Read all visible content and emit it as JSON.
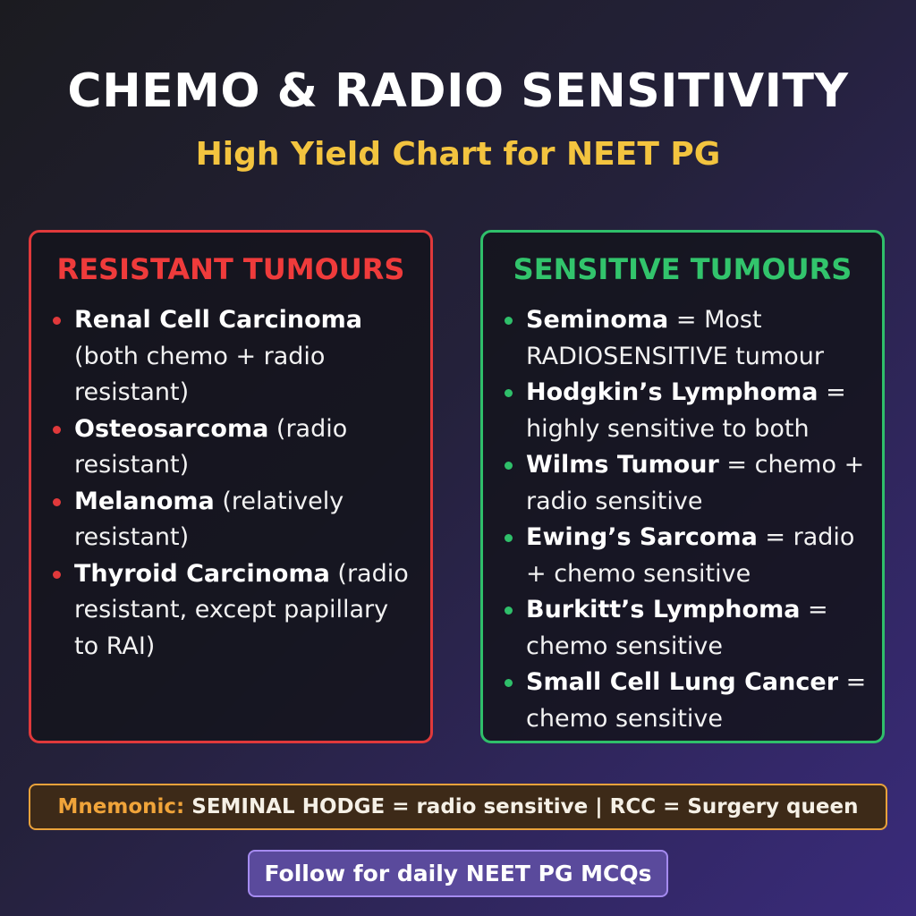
{
  "header": {
    "title": "CHEMO & RADIO SENSITIVITY",
    "subtitle": "High Yield Chart for NEET PG"
  },
  "panels": [
    {
      "title": "RESISTANT TUMOURS",
      "items": [
        {
          "name": "Renal Cell Carcinoma",
          "rest": "(both chemo + radio resistant)"
        },
        {
          "name": "Osteosarcoma",
          "rest": "(radio resistant)"
        },
        {
          "name": "Melanoma",
          "rest": "(relatively resistant)"
        },
        {
          "name": "Thyroid Carcinoma",
          "rest": "(radio resistant, except papillary to RAI)"
        }
      ]
    },
    {
      "title": "SENSITIVE TUMOURS",
      "items": [
        {
          "name": "Seminoma",
          "rest": "= Most RADIOSENSITIVE tumour"
        },
        {
          "name": "Hodgkin’s Lymphoma",
          "rest": "= highly sensitive to both"
        },
        {
          "name": "Wilms Tumour",
          "rest": "= chemo + radio sensitive"
        },
        {
          "name": "Ewing’s Sarcoma",
          "rest": "= radio + chemo sensitive"
        },
        {
          "name": "Burkitt’s Lymphoma",
          "rest": "= chemo sensitive"
        },
        {
          "name": "Small Cell Lung Cancer",
          "rest": "= chemo sensitive"
        }
      ]
    }
  ],
  "mnemonic": {
    "label": "Mnemonic:",
    "text": "SEMINAL HODGE = radio sensitive | RCC = Surgery queen"
  },
  "footer": {
    "text": "Follow for daily NEET PG MCQs"
  }
}
